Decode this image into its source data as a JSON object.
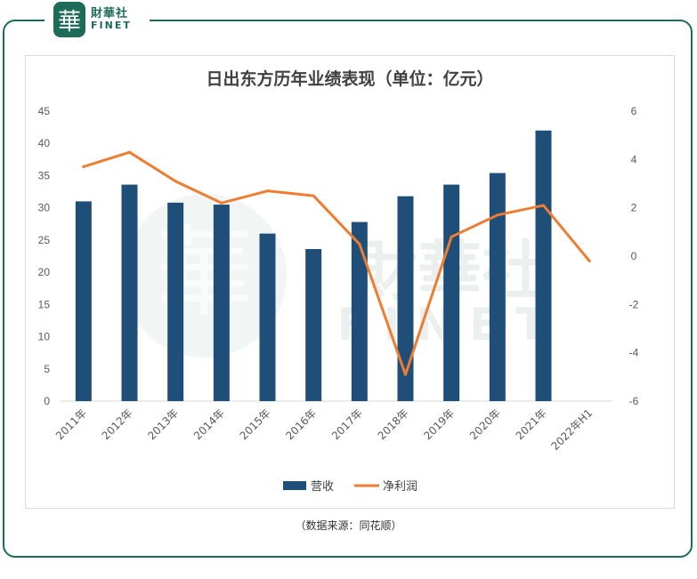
{
  "brand": {
    "icon": "hua-logo-icon",
    "name_cn": "財華社",
    "name_en": "FINET",
    "color": "#1f6b5a"
  },
  "source_note": "（数据来源：同花顺）",
  "chart_data": {
    "type": "bar",
    "title": "日出东方历年业绩表现（单位：亿元）",
    "categories": [
      "2011年",
      "2012年",
      "2013年",
      "2014年",
      "2015年",
      "2016年",
      "2017年",
      "2018年",
      "2019年",
      "2020年",
      "2021年",
      "2022年H1"
    ],
    "series": [
      {
        "name": "营收",
        "type": "bar",
        "axis": "left",
        "color": "#1f4e79",
        "values": [
          31.0,
          33.6,
          30.8,
          30.5,
          26.0,
          23.6,
          27.8,
          31.8,
          33.6,
          35.4,
          42.0,
          null
        ]
      },
      {
        "name": "净利润",
        "type": "line",
        "axis": "right",
        "color": "#ed7d31",
        "values": [
          3.7,
          4.3,
          3.1,
          2.2,
          2.7,
          2.5,
          0.5,
          -4.9,
          0.8,
          1.7,
          2.1,
          -0.2
        ]
      }
    ],
    "y_left": {
      "ylim": [
        0,
        45
      ],
      "ticks": [
        0,
        5,
        10,
        15,
        20,
        25,
        30,
        35,
        40,
        45
      ]
    },
    "y_right": {
      "ylim": [
        -6,
        6
      ],
      "ticks": [
        -6,
        -4,
        -2,
        0,
        2,
        4,
        6
      ]
    },
    "grid": false,
    "legend": "bottom-center",
    "watermark": {
      "cn": "財華社",
      "en": "FINET"
    }
  }
}
